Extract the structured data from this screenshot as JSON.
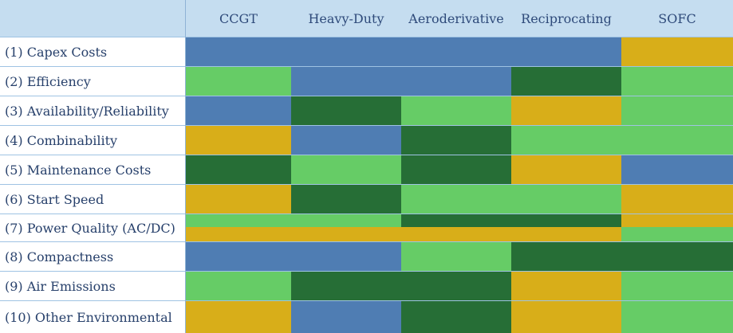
{
  "chart_data": {
    "type": "heatmap",
    "columns": [
      "CCGT",
      "Heavy-Duty",
      "Aeroderivative",
      "Reciprocating",
      "SOFC"
    ],
    "colors": {
      "blue": "#4f7db3",
      "yellow": "#d8ae19",
      "light_green": "#66cc66",
      "dark_green": "#266e36",
      "header_bg": "#c5ddf0",
      "grid": "#9fc3e3"
    },
    "rows": [
      {
        "label": "(1) Capex Costs",
        "cells": [
          "blue",
          "blue",
          "blue",
          "blue",
          "yellow"
        ]
      },
      {
        "label": "(2) Efficiency",
        "cells": [
          "light_green",
          "blue",
          "blue",
          "dark_green",
          "light_green"
        ]
      },
      {
        "label": "(3) Availability/Reliability",
        "cells": [
          "blue",
          "dark_green",
          "light_green",
          "yellow",
          "light_green"
        ]
      },
      {
        "label": "(4) Combinability",
        "cells": [
          "yellow",
          "blue",
          "dark_green",
          "light_green",
          "light_green"
        ]
      },
      {
        "label": "(5) Maintenance Costs",
        "cells": [
          "dark_green",
          "light_green",
          "dark_green",
          "yellow",
          "blue"
        ]
      },
      {
        "label": "(6) Start Speed",
        "cells": [
          "yellow",
          "dark_green",
          "light_green",
          "light_green",
          "yellow"
        ]
      },
      {
        "label": "(7) Power Quality (AC/DC)",
        "cells": [
          "light_green",
          "light_green",
          "dark_green",
          "dark_green",
          "yellow"
        ],
        "cells_lower": [
          "yellow",
          "yellow",
          "yellow",
          "yellow",
          "light_green"
        ]
      },
      {
        "label": "(8) Compactness",
        "cells": [
          "blue",
          "blue",
          "light_green",
          "dark_green",
          "dark_green"
        ]
      },
      {
        "label": "(9) Air Emissions",
        "cells": [
          "light_green",
          "dark_green",
          "dark_green",
          "yellow",
          "light_green"
        ]
      },
      {
        "label": "(10) Other Environmental",
        "cells": [
          "yellow",
          "blue",
          "dark_green",
          "yellow",
          "light_green"
        ]
      }
    ]
  }
}
